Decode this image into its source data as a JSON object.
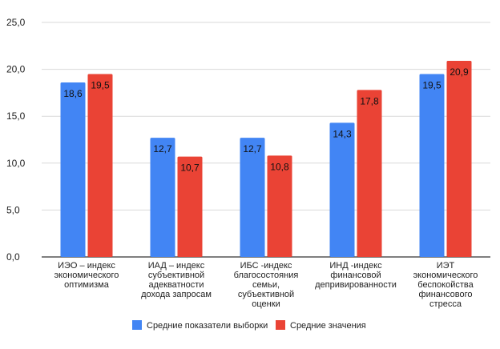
{
  "chart_data": {
    "type": "bar",
    "title": "",
    "xlabel": "",
    "ylabel": "",
    "ylim": [
      0,
      25
    ],
    "yticks": [
      "0,0",
      "5,0",
      "10,0",
      "15,0",
      "20,0",
      "25,0"
    ],
    "grid": true,
    "legend_position": "bottom",
    "categories": [
      [
        "ИЭО – индекс",
        "экономического",
        "оптимизма"
      ],
      [
        "ИАД – индекс",
        "субъективной",
        "адекватности",
        "дохода запросам"
      ],
      [
        "ИБС -индекс",
        "благосостояния",
        "семьи,",
        "субъективной",
        "оценки"
      ],
      [
        "ИНД -индекс",
        "финансовой",
        "депривированности"
      ],
      [
        "ИЭТ",
        "экономического",
        "беспокойства",
        "финансового",
        "стресса"
      ]
    ],
    "series": [
      {
        "name": "Средние показатели выборки",
        "color": "#4285f4",
        "values": [
          18.6,
          12.7,
          12.7,
          14.3,
          19.5
        ],
        "labels": [
          "18,6",
          "12,7",
          "12,7",
          "14,3",
          "19,5"
        ]
      },
      {
        "name": "Средние значения",
        "color": "#ea4335",
        "values": [
          19.5,
          10.7,
          10.8,
          17.8,
          20.9
        ],
        "labels": [
          "19,5",
          "10,7",
          "10,8",
          "17,8",
          "20,9"
        ]
      }
    ]
  }
}
